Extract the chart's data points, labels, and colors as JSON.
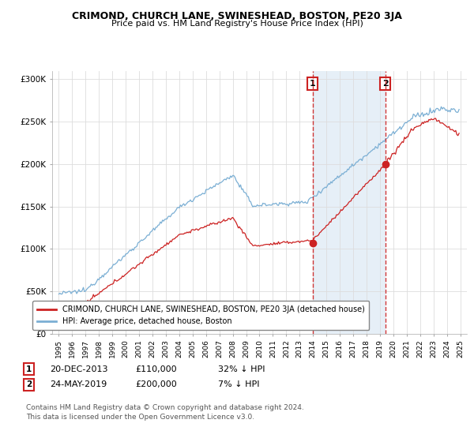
{
  "title": "CRIMOND, CHURCH LANE, SWINESHEAD, BOSTON, PE20 3JA",
  "subtitle": "Price paid vs. HM Land Registry's House Price Index (HPI)",
  "background_color": "#ffffff",
  "plot_bg_color": "#ffffff",
  "sale1_date_label": "20-DEC-2013",
  "sale1_price": 110000,
  "sale1_pct": "32% ↓ HPI",
  "sale1_x": 2013.97,
  "sale1_y": 107000,
  "sale2_date_label": "24-MAY-2019",
  "sale2_price": 200000,
  "sale2_pct": "7% ↓ HPI",
  "sale2_x": 2019.39,
  "sale2_y": 200000,
  "legend_label1": "CRIMOND, CHURCH LANE, SWINESHEAD, BOSTON, PE20 3JA (detached house)",
  "legend_label2": "HPI: Average price, detached house, Boston",
  "footer1": "Contains HM Land Registry data © Crown copyright and database right 2024.",
  "footer2": "This data is licensed under the Open Government Licence v3.0.",
  "ylabel_ticks": [
    "£0",
    "£50K",
    "£100K",
    "£150K",
    "£200K",
    "£250K",
    "£300K"
  ],
  "ytick_values": [
    0,
    50000,
    100000,
    150000,
    200000,
    250000,
    300000
  ],
  "ylim": [
    0,
    310000
  ],
  "xlim_start": 1994.5,
  "xlim_end": 2025.5,
  "hpi_color": "#7bafd4",
  "hpi_fill_color": "#d0e4f5",
  "price_color": "#cc2222",
  "vline_color": "#cc2222",
  "grid_color": "#dddddd",
  "shade_color": "#dce9f5"
}
